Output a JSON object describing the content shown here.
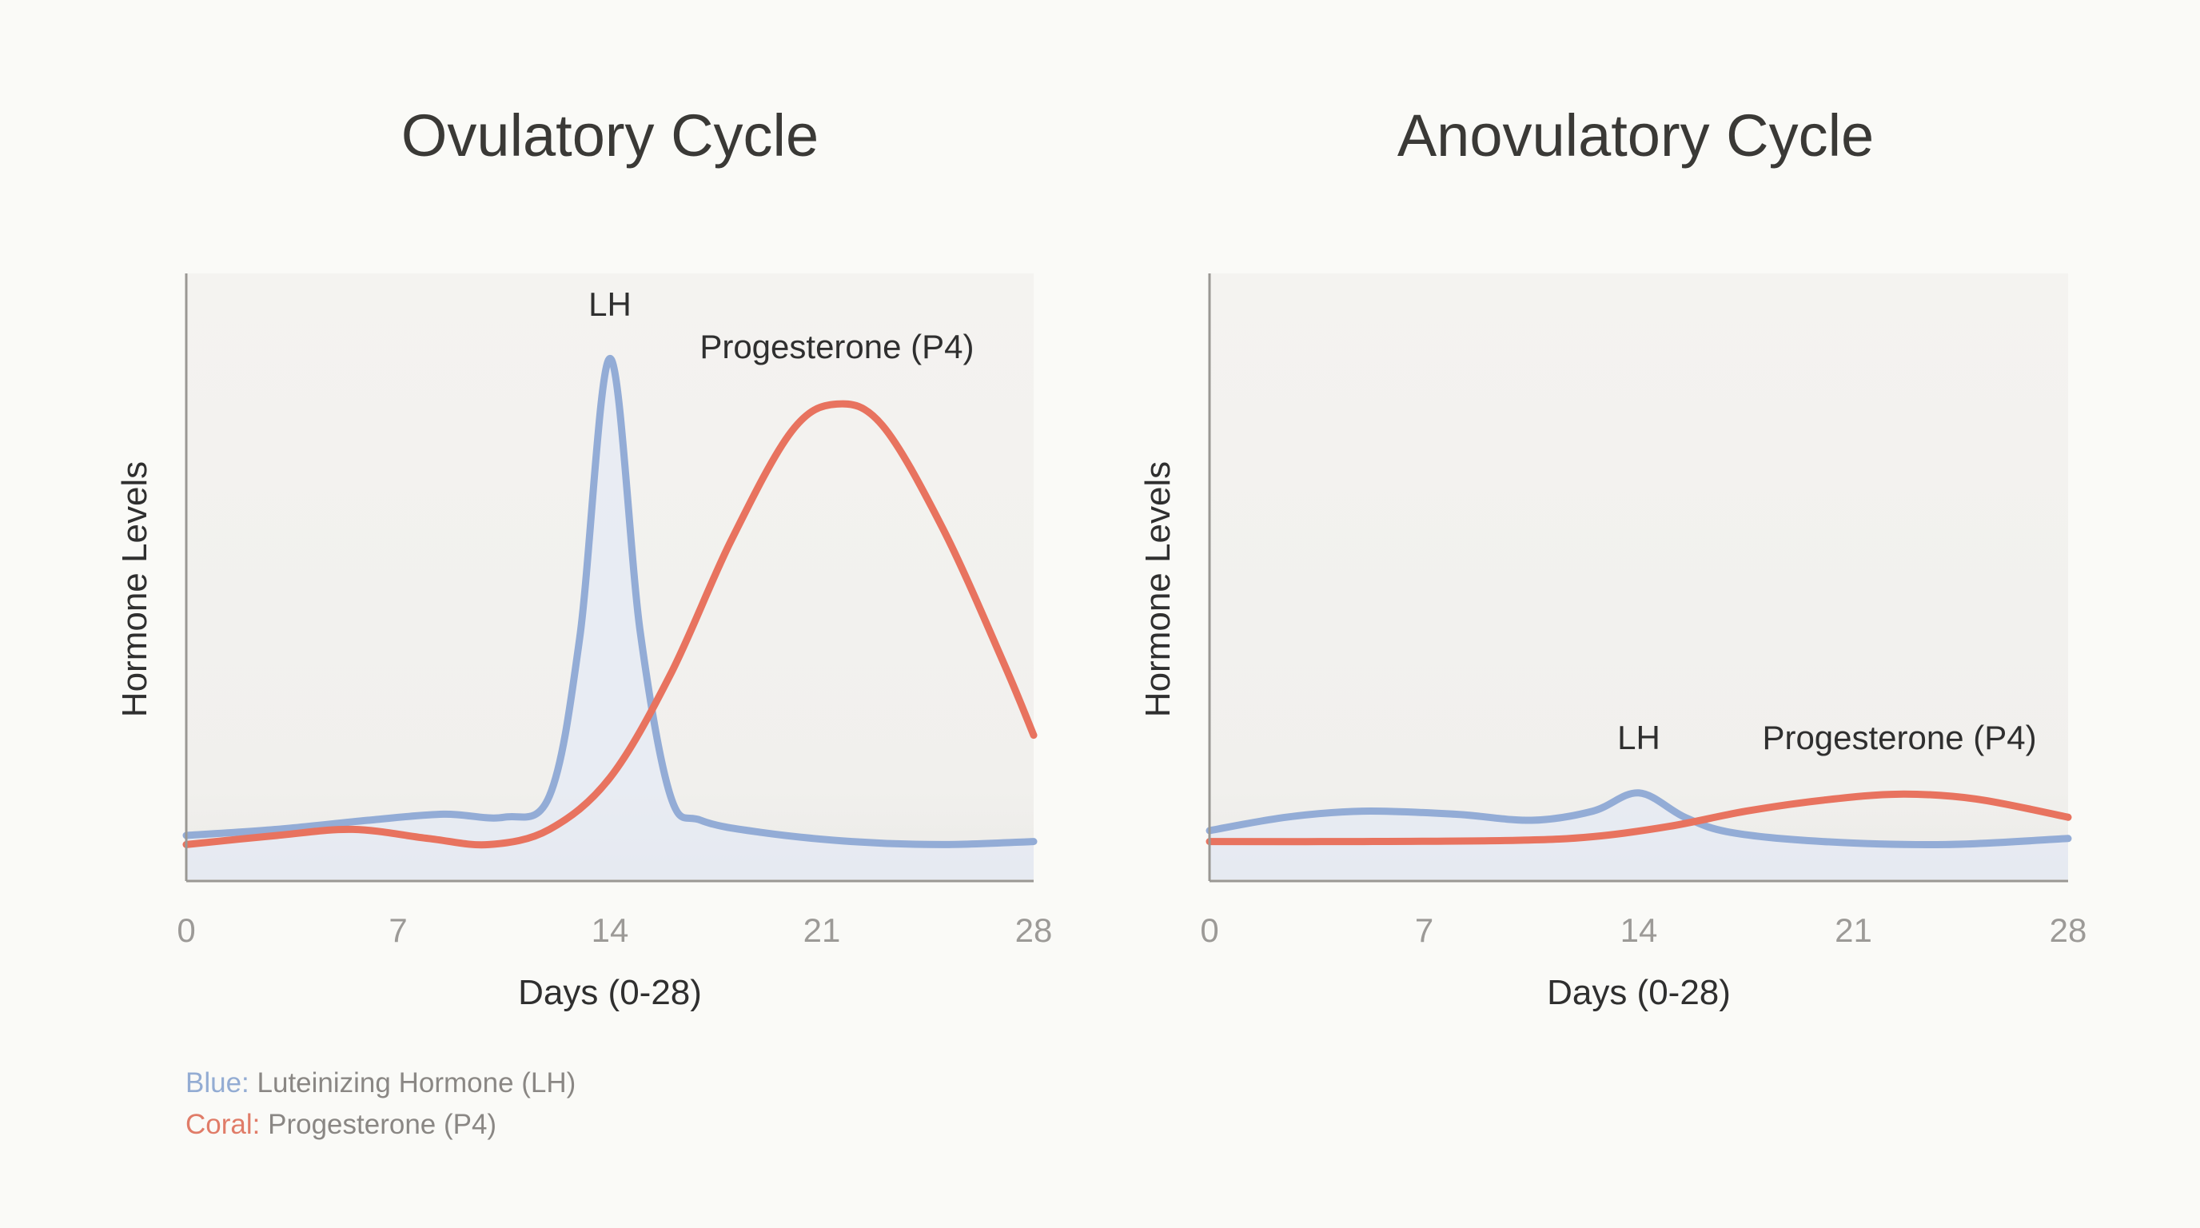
{
  "colors": {
    "lh": "#93acd6",
    "p4": "#e8735f",
    "lh_fill": "#e4eaf5",
    "axis": "#9a9894",
    "text": "#2f2f2f",
    "tick": "#9c9a97"
  },
  "legend": {
    "lh_key": "Blue:",
    "lh_text": "Luteinizing Hormone (LH)",
    "p4_key": "Coral:",
    "p4_text": "Progesterone (P4)"
  },
  "chart_data": [
    {
      "type": "line",
      "title": "Ovulatory Cycle",
      "xlabel": "Days (0-28)",
      "ylabel": "Hormone Levels",
      "xlim": [
        0,
        28
      ],
      "ylim": [
        0,
        100
      ],
      "xticks": [
        "0",
        "7",
        "14",
        "21",
        "28"
      ],
      "grid": false,
      "series": [
        {
          "name": "LH",
          "key": "lh",
          "x": [
            0,
            3,
            6,
            8.5,
            10.5,
            12,
            13,
            14,
            15,
            16,
            17,
            19,
            22,
            25,
            28
          ],
          "y": [
            7.5,
            8.5,
            10,
            11,
            10.5,
            14,
            40,
            86,
            41,
            14,
            10,
            8,
            6.5,
            6,
            6.5
          ]
        },
        {
          "name": "Progesterone (P4)",
          "key": "p4",
          "x": [
            0,
            3,
            5.5,
            8,
            10,
            12,
            14,
            16,
            18,
            20,
            21.5,
            23,
            25,
            27,
            28
          ],
          "y": [
            6,
            7.5,
            8.5,
            7,
            6,
            8.5,
            17,
            34,
            56,
            74,
            78.5,
            75,
            58,
            36,
            24
          ]
        }
      ]
    },
    {
      "type": "line",
      "title": "Anovulatory Cycle",
      "xlabel": "Days (0-28)",
      "ylabel": "Hormone Levels",
      "xlim": [
        0,
        28
      ],
      "ylim": [
        0,
        100
      ],
      "xticks": [
        "0",
        "7",
        "14",
        "21",
        "28"
      ],
      "grid": false,
      "series": [
        {
          "name": "LH",
          "key": "lh",
          "x": [
            0,
            2.5,
            5,
            8,
            10.5,
            12.5,
            14,
            15.5,
            17,
            20,
            24,
            28
          ],
          "y": [
            8.3,
            10.5,
            11.5,
            11,
            10,
            11.5,
            14.5,
            10.5,
            8,
            6.5,
            6,
            7
          ]
        },
        {
          "name": "Progesterone (P4)",
          "key": "p4",
          "x": [
            0,
            5,
            10,
            12.5,
            15,
            17.5,
            20,
            22.5,
            25,
            28
          ],
          "y": [
            6.5,
            6.5,
            6.7,
            7.3,
            9,
            11.5,
            13.3,
            14.3,
            13.5,
            10.5
          ]
        }
      ]
    }
  ]
}
